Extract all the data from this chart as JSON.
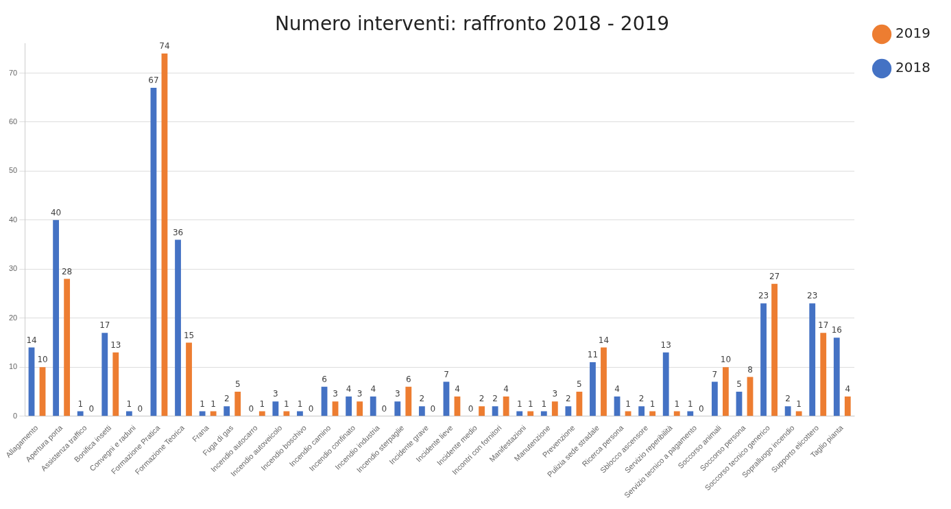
{
  "chart_data": {
    "type": "bar",
    "title": "Numero interventi: raffronto 2018 - 2019",
    "categories": [
      "Allagamento",
      "Apertura porta",
      "Assistenza traffico",
      "Bonifica insetti",
      "Convegni e raduni",
      "Formazione Pratica",
      "Formazione Teorica",
      "Frana",
      "Fuga di gas",
      "Incendio autocarro",
      "Incendio autoveicolo",
      "Incendio boschivo",
      "Incendio camino",
      "Incendio confinato",
      "Incendio industria",
      "Incendio sterpaglie",
      "Incidente grave",
      "Incidente lieve",
      "Incidente medio",
      "Incontri con fornitori",
      "Manifestazioni",
      "Manutenzione",
      "Prevenzione",
      "Pulizia sede stradale",
      "Ricerca persona",
      "Sblocco ascensore",
      "Servizio reperibilità",
      "Servizio tecnico a pagamento",
      "Soccorso animali",
      "Soccorso persona",
      "Soccorso tecnico generico",
      "Sopralluogo incendio",
      "Supporto elicottero",
      "Taglio pianta"
    ],
    "series": [
      {
        "name": "2018",
        "color": "#4472c4",
        "values": [
          14,
          40,
          1,
          17,
          1,
          67,
          36,
          1,
          2,
          0,
          3,
          1,
          6,
          4,
          4,
          3,
          2,
          7,
          0,
          2,
          1,
          1,
          2,
          11,
          4,
          2,
          13,
          1,
          7,
          5,
          23,
          2,
          23,
          16
        ]
      },
      {
        "name": "2019",
        "color": "#ed7d31",
        "values": [
          10,
          28,
          0,
          13,
          0,
          74,
          15,
          1,
          5,
          1,
          1,
          0,
          3,
          3,
          0,
          6,
          0,
          4,
          2,
          4,
          1,
          3,
          5,
          14,
          1,
          1,
          1,
          0,
          10,
          8,
          27,
          1,
          17,
          4
        ]
      }
    ],
    "ylim": [
      0,
      76
    ],
    "yticks": [
      0,
      10,
      20,
      30,
      40,
      50,
      60,
      70
    ],
    "grid": "y",
    "legend": "top right",
    "data_labels": true
  }
}
